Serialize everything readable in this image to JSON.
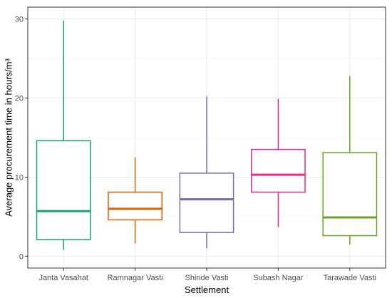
{
  "chart_data": {
    "type": "boxplot",
    "title": "",
    "xlabel": "Settlement",
    "ylabel": "Average procurement time in hours/m³",
    "ylim": [
      -1.5,
      31.5
    ],
    "yticks": [
      0,
      10,
      20,
      30
    ],
    "grid": true,
    "legend": "none",
    "categories": [
      "Janta Vasahat",
      "Ramnagar Vasti",
      "Shinde Vasti",
      "Subash Nagar",
      "Tarawade Vasti"
    ],
    "colors": [
      "#1b9e77",
      "#d95f02",
      "#7570b3",
      "#e7298a",
      "#66a61e"
    ],
    "boxes": [
      {
        "whisker_low": 0.8,
        "q1": 2.1,
        "median": 5.7,
        "q3": 14.6,
        "whisker_high": 29.8
      },
      {
        "whisker_low": 1.6,
        "q1": 4.6,
        "median": 6.0,
        "q3": 8.1,
        "whisker_high": 12.5
      },
      {
        "whisker_low": 1.0,
        "q1": 3.0,
        "median": 7.2,
        "q3": 10.5,
        "whisker_high": 20.2
      },
      {
        "whisker_low": 3.7,
        "q1": 8.1,
        "median": 10.3,
        "q3": 13.5,
        "whisker_high": 19.9
      },
      {
        "whisker_low": 1.5,
        "q1": 2.6,
        "median": 4.9,
        "q3": 13.1,
        "whisker_high": 22.8
      }
    ]
  }
}
